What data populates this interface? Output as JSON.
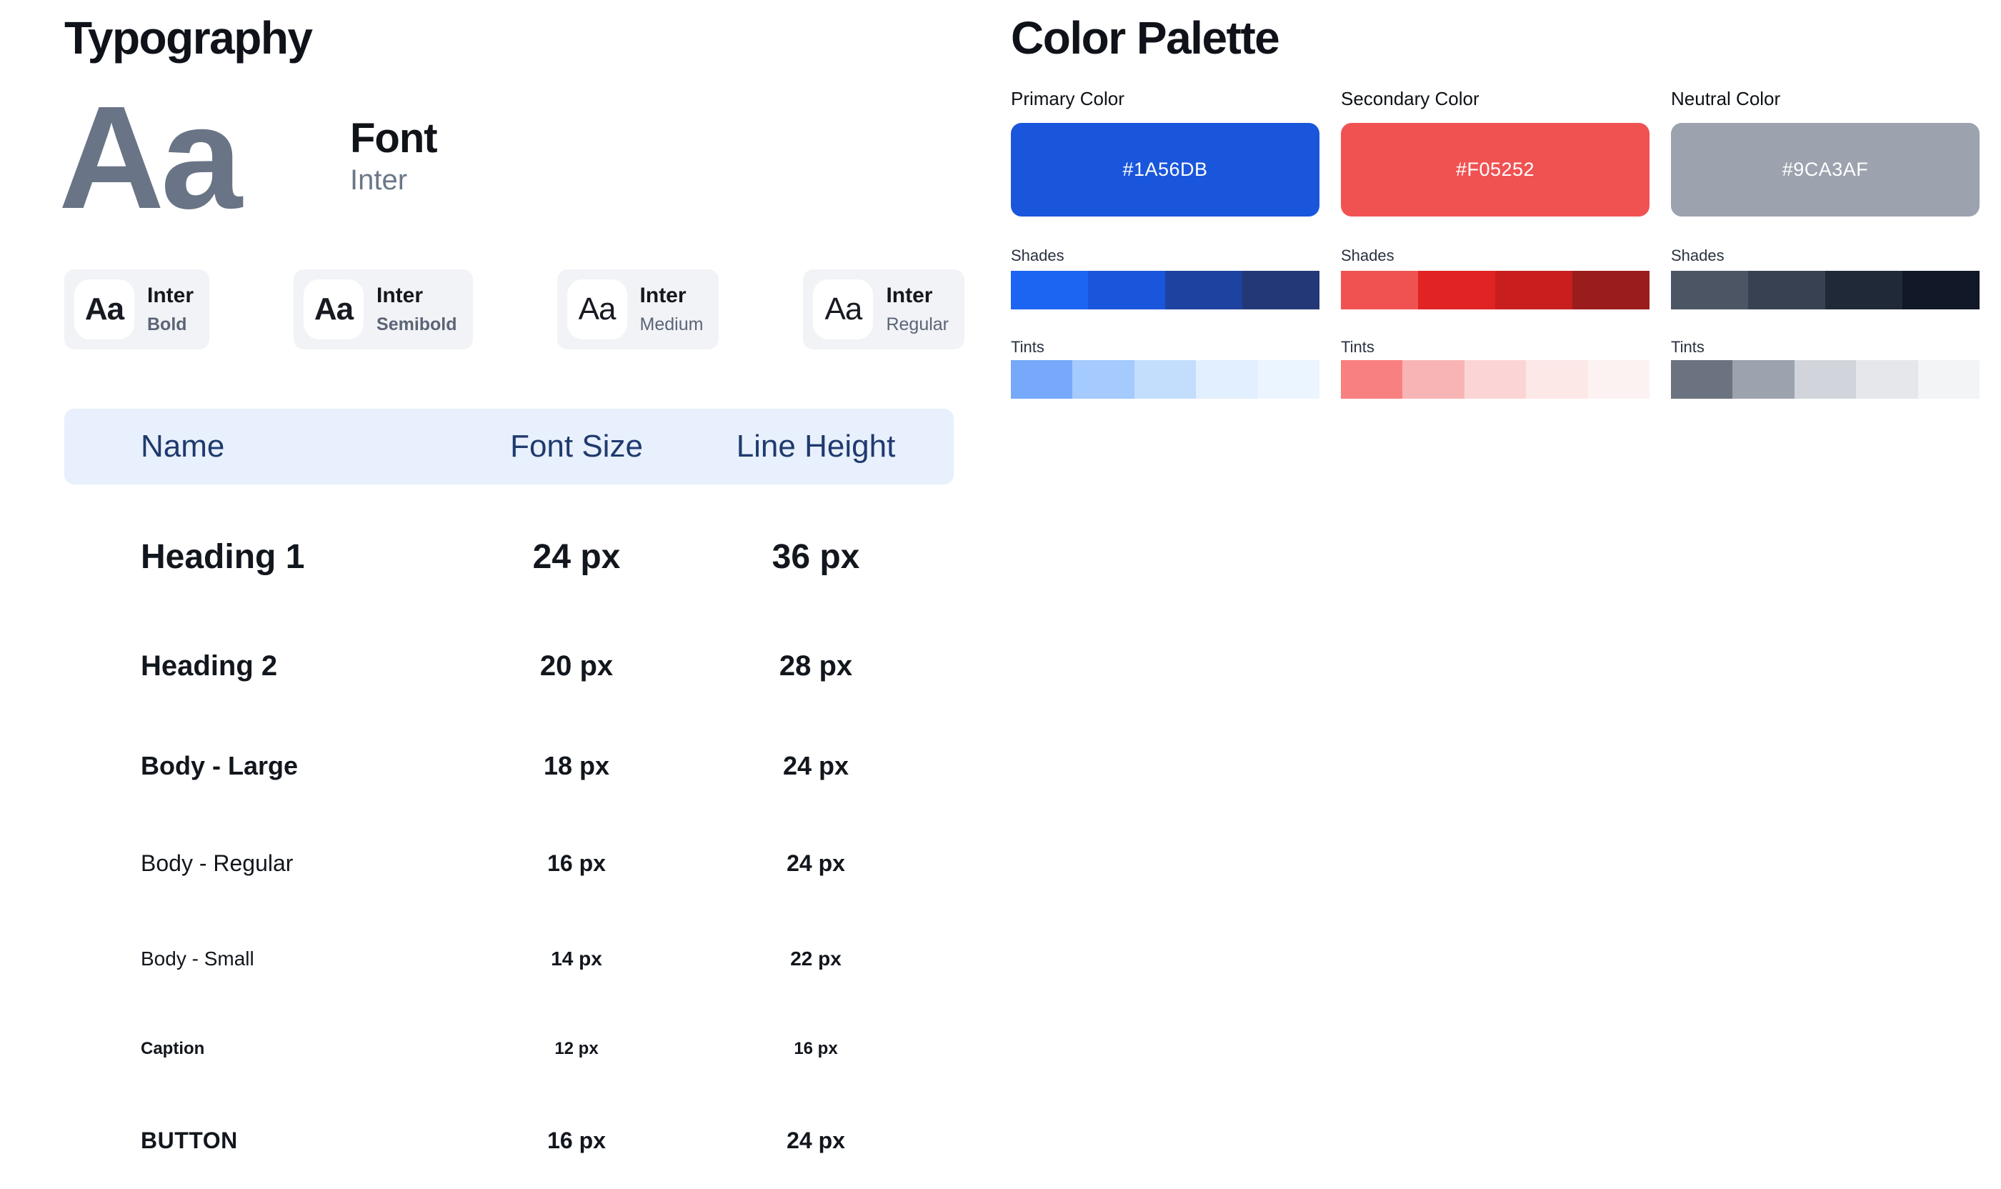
{
  "typography": {
    "title": "Typography",
    "specimen": {
      "display": "Aa",
      "font_label": "Font",
      "font_name": "Inter"
    },
    "weights": [
      {
        "sample": "Aa",
        "family": "Inter",
        "weight_label": "Bold"
      },
      {
        "sample": "Aa",
        "family": "Inter",
        "weight_label": "Semibold"
      },
      {
        "sample": "Aa",
        "family": "Inter",
        "weight_label": "Medium"
      },
      {
        "sample": "Aa",
        "family": "Inter",
        "weight_label": "Regular"
      }
    ],
    "table": {
      "headers": [
        "Name",
        "Font Size",
        "Line Height"
      ],
      "rows": [
        {
          "name": "Heading 1",
          "font_size": "24 px",
          "line_height": "36 px"
        },
        {
          "name": "Heading 2",
          "font_size": "20 px",
          "line_height": "28 px"
        },
        {
          "name": "Body - Large",
          "font_size": "18 px",
          "line_height": "24 px"
        },
        {
          "name": "Body - Regular",
          "font_size": "16 px",
          "line_height": "24 px"
        },
        {
          "name": "Body - Small",
          "font_size": "14 px",
          "line_height": "22 px"
        },
        {
          "name": "Caption",
          "font_size": "12 px",
          "line_height": "16 px"
        },
        {
          "name": "BUTTON",
          "font_size": "16 px",
          "line_height": "24 px"
        }
      ]
    }
  },
  "palette": {
    "title": "Color Palette",
    "shades_label": "Shades",
    "tints_label": "Tints",
    "columns": [
      {
        "label": "Primary Color",
        "hex": "#1A56DB",
        "shades": [
          "#1C64F2",
          "#1A56DB",
          "#1E429F",
          "#233876"
        ],
        "tints": [
          "#76A9FA",
          "#A4CAFE",
          "#C3DDFD",
          "#E1EFFE",
          "#EBF5FF"
        ]
      },
      {
        "label": "Secondary Color",
        "hex": "#F05252",
        "shades": [
          "#F05252",
          "#E02424",
          "#C81E1E",
          "#9B1C1C"
        ],
        "tints": [
          "#F98080",
          "#F8B4B4",
          "#FBD5D5",
          "#FDE8E8",
          "#FDF2F2"
        ]
      },
      {
        "label": "Neutral Color",
        "hex": "#9CA3AF",
        "shades": [
          "#4B5563",
          "#374151",
          "#1F2937",
          "#111827"
        ],
        "tints": [
          "#6B7280",
          "#9CA3AF",
          "#D1D5DB",
          "#E5E7EB",
          "#F3F4F6"
        ]
      }
    ]
  }
}
